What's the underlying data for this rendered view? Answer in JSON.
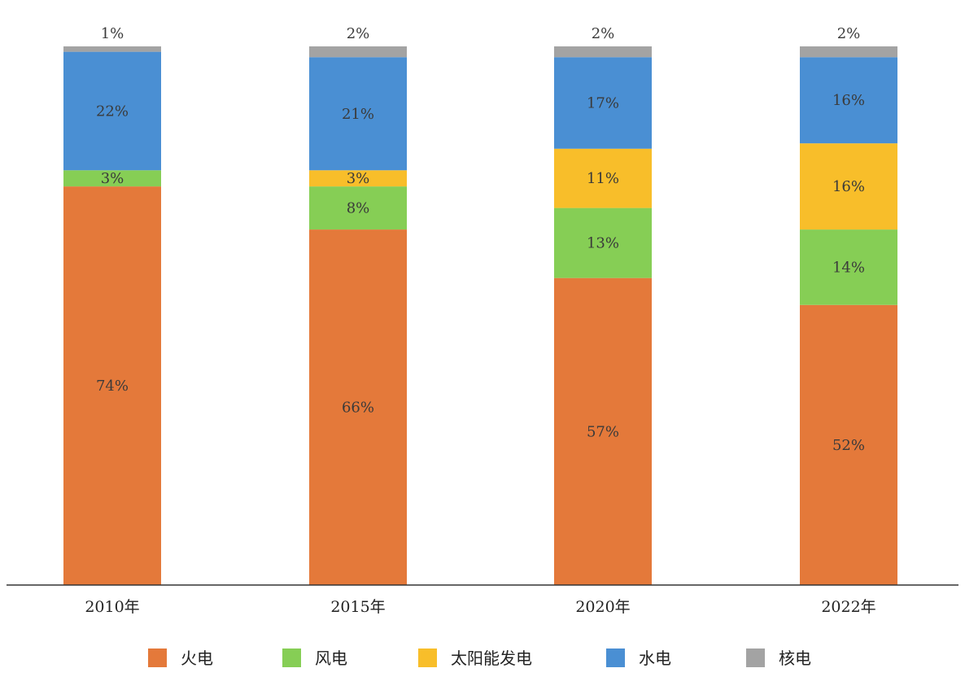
{
  "chart_data": {
    "type": "bar",
    "stacked": true,
    "categories": [
      "2010年",
      "2015年",
      "2020年",
      "2022年"
    ],
    "series": [
      {
        "name": "火电",
        "color": "#E4793A",
        "values": [
          74,
          66,
          57,
          52
        ],
        "labels": [
          "74%",
          "66%",
          "57%",
          "52%"
        ]
      },
      {
        "name": "风电",
        "color": "#86CE55",
        "values": [
          3,
          8,
          13,
          14
        ],
        "labels": [
          "3%",
          "8%",
          "13%",
          "14%"
        ]
      },
      {
        "name": "太阳能发电",
        "color": "#F8BE2A",
        "values": [
          0,
          3,
          11,
          16
        ],
        "labels": [
          "",
          "3%",
          "11%",
          "16%"
        ]
      },
      {
        "name": "水电",
        "color": "#4A8FD3",
        "values": [
          22,
          21,
          17,
          16
        ],
        "labels": [
          "22%",
          "21%",
          "17%",
          "16%"
        ]
      },
      {
        "name": "核电",
        "color": "#A3A3A3",
        "values": [
          1,
          2,
          2,
          2
        ],
        "labels": [
          "1%",
          "2%",
          "2%",
          "2%"
        ]
      }
    ],
    "ylim": [
      0,
      100
    ],
    "grid": false,
    "legend_position": "bottom"
  }
}
